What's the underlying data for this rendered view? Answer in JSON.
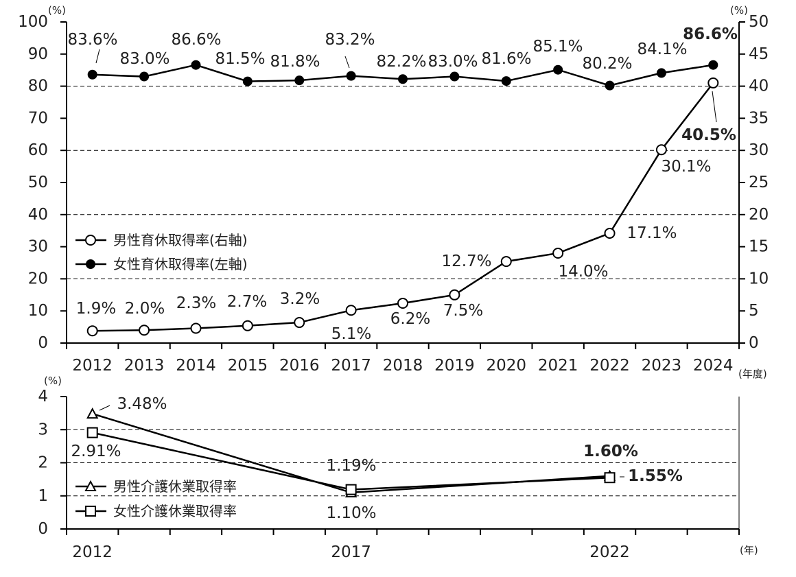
{
  "chart_data": [
    {
      "type": "line",
      "categories": [
        "2012",
        "2013",
        "2014",
        "2015",
        "2016",
        "2017",
        "2018",
        "2019",
        "2020",
        "2021",
        "2022",
        "2023",
        "2024"
      ],
      "x_unit": "(年度)",
      "y_left": {
        "unit": "(%)",
        "range": [
          0,
          100
        ],
        "ticks": [
          0,
          10,
          20,
          30,
          40,
          50,
          60,
          70,
          80,
          90,
          100
        ]
      },
      "y_right": {
        "unit": "(%)",
        "range": [
          0,
          50
        ],
        "ticks": [
          0,
          5,
          10,
          15,
          20,
          25,
          30,
          35,
          40,
          45,
          50
        ]
      },
      "grid": "dashed horizontal at 20, 40, 60, 80 (left axis)",
      "legend_position": "middle-left",
      "series": [
        {
          "name": "男性育休取得率(右軸)",
          "axis": "right",
          "marker": "open-circle",
          "values": [
            1.9,
            2.0,
            2.3,
            2.7,
            3.2,
            5.1,
            6.2,
            7.5,
            12.7,
            14.0,
            17.1,
            30.1,
            40.5
          ],
          "labels": [
            "1.9%",
            "2.0%",
            "2.3%",
            "2.7%",
            "3.2%",
            "5.1%",
            "6.2%",
            "7.5%",
            "12.7%",
            "14.0%",
            "17.1%",
            "30.1%",
            "40.5%"
          ]
        },
        {
          "name": "女性育休取得率(左軸)",
          "axis": "left",
          "marker": "filled-circle",
          "values": [
            83.6,
            83.0,
            86.6,
            81.5,
            81.8,
            83.2,
            82.2,
            83.0,
            81.6,
            85.1,
            80.2,
            84.1,
            86.6
          ],
          "labels": [
            "83.6%",
            "83.0%",
            "86.6%",
            "81.5%",
            "81.8%",
            "83.2%",
            "82.2%",
            "83.0%",
            "81.6%",
            "85.1%",
            "80.2%",
            "84.1%",
            "86.6%"
          ]
        }
      ]
    },
    {
      "type": "line",
      "x": [
        2012,
        2017,
        2022
      ],
      "x_ticks": [
        "2012",
        "2017",
        "2022"
      ],
      "x_unit": "(年)",
      "y": {
        "unit": "(%)",
        "range": [
          0,
          4
        ],
        "ticks": [
          0,
          1,
          2,
          3,
          4
        ]
      },
      "grid": "dashed horizontal at 1, 2, 3",
      "legend_position": "bottom-left",
      "series": [
        {
          "name": "男性介護休業取得率",
          "marker": "open-triangle",
          "values": [
            3.48,
            1.1,
            1.6
          ],
          "labels": [
            "3.48%",
            "1.10%",
            "1.60%"
          ]
        },
        {
          "name": "女性介護休業取得率",
          "marker": "open-square",
          "values": [
            2.91,
            1.19,
            1.55
          ],
          "labels": [
            "2.91%",
            "1.19%",
            "1.55%"
          ]
        }
      ]
    }
  ]
}
